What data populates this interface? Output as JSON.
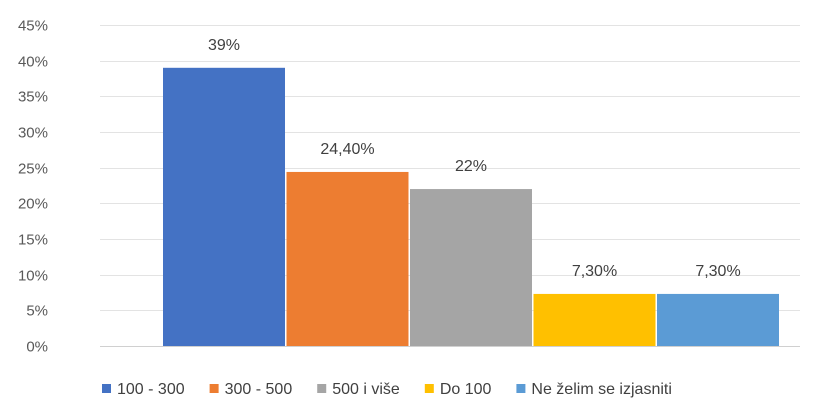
{
  "chart_data": {
    "type": "bar",
    "title": "",
    "xlabel": "",
    "ylabel": "",
    "ylim": [
      0,
      45
    ],
    "yticks": [
      "0%",
      "5%",
      "10%",
      "15%",
      "20%",
      "25%",
      "30%",
      "35%",
      "40%",
      "45%"
    ],
    "grid": true,
    "legend_position": "bottom",
    "series": [
      {
        "name": "100 - 300",
        "value": 39,
        "label": "39%",
        "color": "#4472C4"
      },
      {
        "name": "300 - 500",
        "value": 24.4,
        "label": "24,40%",
        "color": "#ED7D31"
      },
      {
        "name": "500 i više",
        "value": 22,
        "label": "22%",
        "color": "#A5A5A5"
      },
      {
        "name": "Do 100",
        "value": 7.3,
        "label": "7,30%",
        "color": "#FFC000"
      },
      {
        "name": "Ne želim se izjasniti",
        "value": 7.3,
        "label": "7,30%",
        "color": "#5B9BD5"
      }
    ]
  }
}
